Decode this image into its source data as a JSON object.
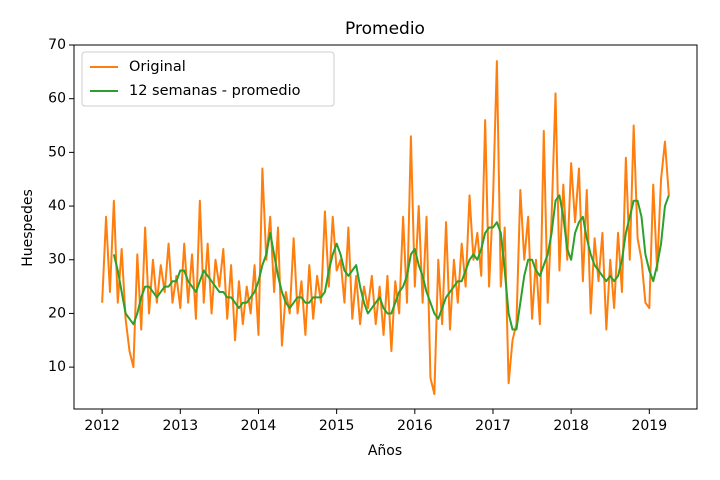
{
  "chart_data": {
    "type": "line",
    "title": "Promedio",
    "xlabel": "Años",
    "ylabel": "Huespedes",
    "x": [
      2012.0,
      2012.05,
      2012.1,
      2012.15,
      2012.2,
      2012.25,
      2012.3,
      2012.35,
      2012.4,
      2012.45,
      2012.5,
      2012.55,
      2012.6,
      2012.65,
      2012.7,
      2012.75,
      2012.8,
      2012.85,
      2012.9,
      2012.95,
      2013.0,
      2013.05,
      2013.1,
      2013.15,
      2013.2,
      2013.25,
      2013.3,
      2013.35,
      2013.4,
      2013.45,
      2013.5,
      2013.55,
      2013.6,
      2013.65,
      2013.7,
      2013.75,
      2013.8,
      2013.85,
      2013.9,
      2013.95,
      2014.0,
      2014.05,
      2014.1,
      2014.15,
      2014.2,
      2014.25,
      2014.3,
      2014.35,
      2014.4,
      2014.45,
      2014.5,
      2014.55,
      2014.6,
      2014.65,
      2014.7,
      2014.75,
      2014.8,
      2014.85,
      2014.9,
      2014.95,
      2015.0,
      2015.05,
      2015.1,
      2015.15,
      2015.2,
      2015.25,
      2015.3,
      2015.35,
      2015.4,
      2015.45,
      2015.5,
      2015.55,
      2015.6,
      2015.65,
      2015.7,
      2015.75,
      2015.8,
      2015.85,
      2015.9,
      2015.95,
      2016.0,
      2016.05,
      2016.1,
      2016.15,
      2016.2,
      2016.25,
      2016.3,
      2016.35,
      2016.4,
      2016.45,
      2016.5,
      2016.55,
      2016.6,
      2016.65,
      2016.7,
      2016.75,
      2016.8,
      2016.85,
      2016.9,
      2016.95,
      2017.0,
      2017.05,
      2017.1,
      2017.15,
      2017.2,
      2017.25,
      2017.3,
      2017.35,
      2017.4,
      2017.45,
      2017.5,
      2017.55,
      2017.6,
      2017.65,
      2017.7,
      2017.75,
      2017.8,
      2017.85,
      2017.9,
      2017.95,
      2018.0,
      2018.05,
      2018.1,
      2018.15,
      2018.2,
      2018.25,
      2018.3,
      2018.35,
      2018.4,
      2018.45,
      2018.5,
      2018.55,
      2018.6,
      2018.65,
      2018.7,
      2018.75,
      2018.8,
      2018.85,
      2018.9,
      2018.95,
      2019.0,
      2019.05,
      2019.1,
      2019.15,
      2019.2,
      2019.25
    ],
    "series": [
      {
        "name": "Original",
        "color": "#ff7f0e",
        "values": [
          22,
          38,
          24,
          41,
          22,
          32,
          19,
          13,
          10,
          31,
          17,
          36,
          20,
          30,
          22,
          29,
          24,
          33,
          22,
          27,
          21,
          33,
          22,
          31,
          19,
          41,
          22,
          33,
          20,
          30,
          25,
          32,
          19,
          29,
          15,
          26,
          18,
          25,
          20,
          29,
          16,
          47,
          30,
          38,
          24,
          36,
          14,
          24,
          20,
          34,
          20,
          26,
          16,
          29,
          19,
          27,
          22,
          39,
          25,
          38,
          28,
          30,
          22,
          36,
          19,
          27,
          18,
          25,
          21,
          27,
          18,
          25,
          16,
          27,
          13,
          26,
          20,
          38,
          22,
          53,
          25,
          40,
          22,
          38,
          8,
          5,
          30,
          18,
          37,
          17,
          30,
          22,
          33,
          25,
          42,
          30,
          35,
          27,
          56,
          25,
          41,
          67,
          25,
          36,
          7,
          15,
          18,
          43,
          30,
          38,
          19,
          30,
          18,
          54,
          22,
          38,
          61,
          28,
          44,
          30,
          48,
          37,
          47,
          26,
          43,
          20,
          34,
          26,
          35,
          17,
          30,
          21,
          35,
          24,
          49,
          30,
          55,
          34,
          30,
          22,
          21,
          44,
          28,
          45,
          52,
          42
        ]
      },
      {
        "name": "12 semanas - promedio",
        "color": "#2ca02c",
        "values": [
          null,
          null,
          null,
          31,
          28,
          24,
          20,
          19,
          18,
          20,
          23,
          25,
          25,
          24,
          23,
          24,
          25,
          25,
          26,
          26,
          28,
          28,
          26,
          25,
          24,
          26,
          28,
          27,
          26,
          25,
          24,
          24,
          23,
          23,
          22,
          21,
          22,
          22,
          23,
          24,
          26,
          29,
          31,
          35,
          31,
          27,
          24,
          22,
          21,
          22,
          23,
          23,
          22,
          22,
          23,
          23,
          23,
          24,
          28,
          31,
          33,
          31,
          28,
          27,
          28,
          29,
          25,
          22,
          20,
          21,
          22,
          23,
          21,
          20,
          20,
          22,
          24,
          25,
          27,
          31,
          32,
          29,
          27,
          24,
          22,
          20,
          19,
          21,
          23,
          24,
          25,
          26,
          26,
          28,
          30,
          31,
          30,
          32,
          35,
          36,
          36,
          37,
          35,
          28,
          20,
          17,
          17,
          22,
          27,
          30,
          30,
          28,
          27,
          29,
          31,
          35,
          41,
          42,
          38,
          32,
          30,
          35,
          37,
          38,
          34,
          31,
          29,
          28,
          27,
          26,
          27,
          26,
          27,
          30,
          35,
          38,
          41,
          41,
          38,
          31,
          28,
          26,
          29,
          33,
          40,
          42
        ]
      }
    ],
    "xlim": [
      2011.64,
      2019.61
    ],
    "xticks": [
      2012,
      2013,
      2014,
      2015,
      2016,
      2017,
      2018,
      2019
    ],
    "ylim": [
      2.2,
      70
    ],
    "yticks": [
      10,
      20,
      30,
      40,
      50,
      60,
      70
    ],
    "grid": false,
    "legend": "upper left"
  }
}
